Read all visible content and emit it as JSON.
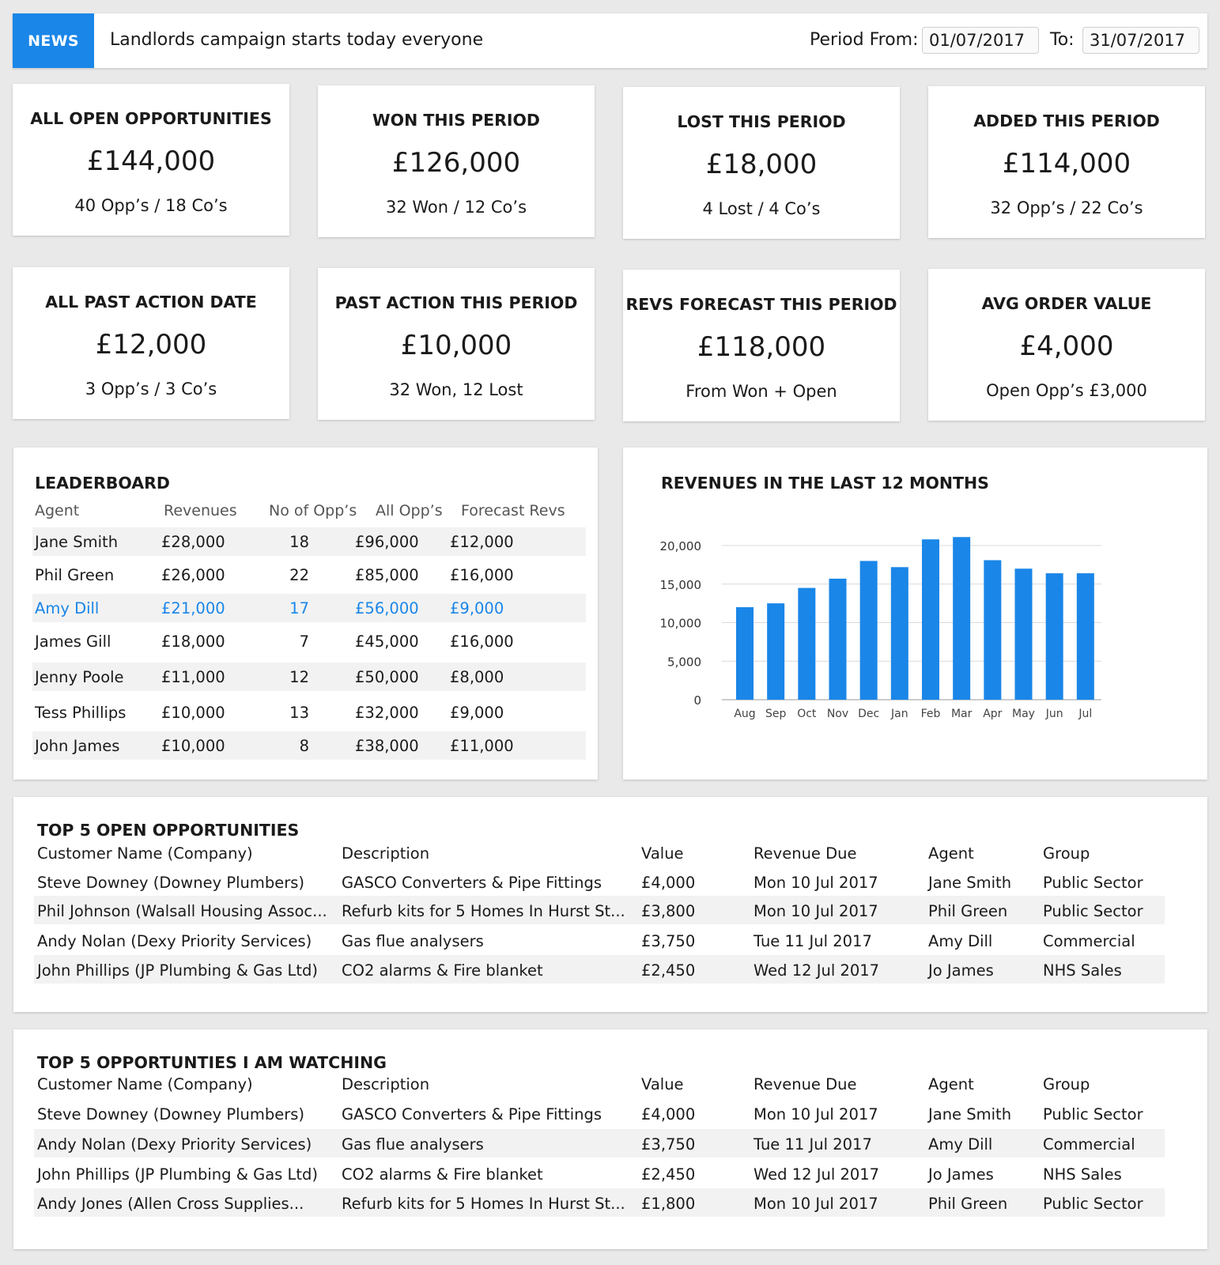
{
  "news": {
    "badge": "NEWS",
    "text": "Landlords campaign starts today everyone",
    "period_from_label": "Period From:",
    "period_from_value": "01/07/2017",
    "period_to_label": "To:",
    "period_to_value": "31/07/2017"
  },
  "stats": [
    {
      "title": "ALL OPEN OPPORTUNITIES",
      "value": "£144,000",
      "sub": "40 Opp’s  / 18 Co’s"
    },
    {
      "title": "WON THIS PERIOD",
      "value": "£126,000",
      "sub": "32 Won / 12 Co’s"
    },
    {
      "title": "LOST THIS PERIOD",
      "value": "£18,000",
      "sub": "4 Lost / 4 Co’s"
    },
    {
      "title": "ADDED THIS PERIOD",
      "value": "£114,000",
      "sub": "32 Opp’s  / 22 Co’s"
    },
    {
      "title": "ALL PAST ACTION DATE",
      "value": "£12,000",
      "sub": "3 Opp’s  / 3 Co’s"
    },
    {
      "title": "PAST ACTION THIS PERIOD",
      "value": "£10,000",
      "sub": "32 Won, 12 Lost"
    },
    {
      "title": "REVS FORECAST THIS PERIOD",
      "value": "£118,000",
      "sub": "From Won + Open"
    },
    {
      "title": "AVG ORDER VALUE",
      "value": "£4,000",
      "sub": "Open Opp’s £3,000"
    }
  ],
  "leaderboard": {
    "title": "LEADERBOARD",
    "headers": [
      "Agent",
      "Revenues",
      "No of Opp’s",
      "All Opp’s",
      "Forecast Revs"
    ],
    "rows": [
      [
        "Jane Smith",
        "£28,000",
        "18",
        "£96,000",
        "£12,000"
      ],
      [
        "Phil Green",
        "£26,000",
        "22",
        "£85,000",
        "£16,000"
      ],
      [
        "Amy Dill",
        "£21,000",
        "17",
        "£56,000",
        "£9,000"
      ],
      [
        "James Gill",
        "£18,000",
        "7",
        "£45,000",
        "£16,000"
      ],
      [
        "Jenny Poole",
        "£11,000",
        "12",
        "£50,000",
        "£8,000"
      ],
      [
        "Tess Phillips",
        "£10,000",
        "13",
        "£32,000",
        "£9,000"
      ],
      [
        "John James",
        "£10,000",
        "8",
        "£38,000",
        "£11,000"
      ]
    ]
  },
  "chart_data": {
    "type": "bar",
    "title": "REVENUES IN THE LAST 12 MONTHS",
    "categories": [
      "Aug",
      "Sep",
      "Oct",
      "Nov",
      "Dec",
      "Jan",
      "Feb",
      "Mar",
      "Apr",
      "May",
      "Jun",
      "Jul"
    ],
    "values": [
      12000,
      12500,
      14500,
      15700,
      18000,
      17200,
      20800,
      21100,
      18100,
      17000,
      16400,
      16400
    ],
    "yticks": [
      "0",
      "5,000",
      "10,000",
      "15,000",
      "20,000"
    ],
    "ylim": [
      0,
      20000
    ],
    "color": "#1a86e8",
    "xlabel": "",
    "ylabel": ""
  },
  "top5_open": {
    "title": "TOP 5 OPEN OPPORTUNITIES",
    "headers": [
      "Customer Name (Company)",
      "Description",
      "Value",
      "Revenue Due",
      "Agent",
      "Group"
    ],
    "rows": [
      [
        "Steve Downey (Downey Plumbers)",
        "GASCO Converters & Pipe Fittings",
        "£4,000",
        "Mon 10 Jul 2017",
        "Jane Smith",
        "Public Sector"
      ],
      [
        "Phil Johnson (Walsall Housing Assoc...",
        "Refurb kits for 5 Homes In Hurst St...",
        "£3,800",
        "Mon 10 Jul 2017",
        "Phil Green",
        "Public Sector"
      ],
      [
        "Andy Nolan (Dexy Priority Services)",
        "Gas flue analysers",
        "£3,750",
        "Tue 11 Jul 2017",
        "Amy Dill",
        "Commercial"
      ],
      [
        "John Phillips (JP Plumbing & Gas Ltd)",
        "CO2 alarms & Fire blanket",
        "£2,450",
        "Wed 12 Jul 2017",
        "Jo James",
        "NHS Sales"
      ]
    ]
  },
  "top5_watch": {
    "title": "TOP 5 OPPORTUNTIES I AM WATCHING",
    "headers": [
      "Customer Name (Company)",
      "Description",
      "Value",
      "Revenue Due",
      "Agent",
      "Group"
    ],
    "rows": [
      [
        "Steve Downey (Downey Plumbers)",
        "GASCO Converters & Pipe Fittings",
        "£4,000",
        "Mon 10 Jul 2017",
        "Jane Smith",
        "Public Sector"
      ],
      [
        "Andy Nolan (Dexy Priority Services)",
        "Gas flue analysers",
        "£3,750",
        "Tue 11 Jul 2017",
        "Amy Dill",
        "Commercial"
      ],
      [
        "John Phillips (JP Plumbing & Gas Ltd)",
        "CO2 alarms & Fire blanket",
        "£2,450",
        "Wed 12 Jul 2017",
        "Jo James",
        "NHS Sales"
      ],
      [
        "Andy Jones (Allen Cross Supplies...",
        "Refurb kits for 5 Homes In Hurst St...",
        "£1,800",
        "Mon 10 Jul 2017",
        "Phil Green",
        "Public Sector"
      ]
    ]
  }
}
